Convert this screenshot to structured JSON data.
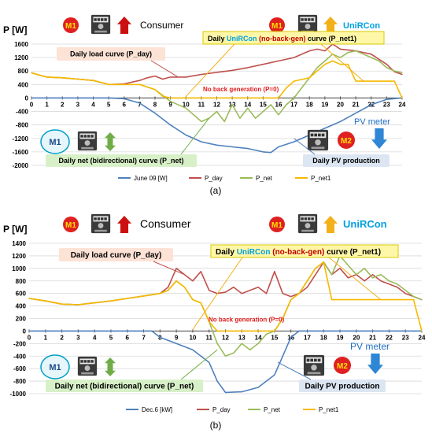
{
  "figure": {
    "panel_a_caption": "(a)",
    "panel_b_caption": "(b)"
  },
  "icons": {
    "m1_badge": "M1",
    "m2_badge": "M2",
    "meter_icon": "electricity-meter-icon",
    "consumer_arrow": "red-up-arrow-icon",
    "unircon_arrow": "orange-up-arrow-icon",
    "net_arrow": "green-double-arrow-icon",
    "pv_arrow": "blue-down-arrow-icon"
  },
  "colors": {
    "series_pv": "#4f81bd",
    "series_day": "#c0504d",
    "series_net": "#9bbb59",
    "series_net1": "#f7b900",
    "m1_badge": "#e02020",
    "m1_ring": "#00a0c6",
    "unircon_text": "#00a0e0",
    "nobackgen_text": "#c00000",
    "load_box": "#fde2d6",
    "net_box": "#d8f0c8",
    "pv_box": "#dce6f2",
    "unircon_box": "#fff7a8"
  },
  "chart_data": [
    {
      "type": "line",
      "ylabel": "P [W]",
      "ylim": [
        -2000,
        1600
      ],
      "yticks": [
        "1600",
        "1200",
        "800",
        "400",
        "0",
        "-400",
        "-800",
        "-1200",
        "-1600",
        "-2000"
      ],
      "xlim": [
        0,
        24
      ],
      "xticks": [
        "0",
        "1",
        "2",
        "3",
        "4",
        "5",
        "6",
        "7",
        "8",
        "9",
        "10",
        "11",
        "12",
        "13",
        "14",
        "15",
        "16",
        "17",
        "18",
        "19",
        "20",
        "21",
        "22",
        "23",
        "24"
      ],
      "grid": true,
      "legend_position": "bottom",
      "annotations": {
        "consumer": "Consumer",
        "unircon_daily": "Daily",
        "unircon_word": "UniRCon",
        "unircon_noback": "(no-back-gen)",
        "unircon_curve": "curve (P_net1)",
        "unircon_title": "UniRCon",
        "load_curve": "Daily load curve (P_day)",
        "no_back": "No back generation (P=0)",
        "net_curve": "Daily net (bidirectional) curve (P_net)",
        "pv_production": "Daily PV production",
        "pv_meter": "PV meter"
      },
      "series": [
        {
          "name": "June 09 [W]",
          "points": [
            [
              0,
              0
            ],
            [
              5,
              0
            ],
            [
              6,
              -20
            ],
            [
              7,
              -150
            ],
            [
              8,
              -450
            ],
            [
              9,
              -800
            ],
            [
              10,
              -1100
            ],
            [
              11,
              -1300
            ],
            [
              12,
              -1400
            ],
            [
              13,
              -1450
            ],
            [
              14,
              -1500
            ],
            [
              15,
              -1600
            ],
            [
              15.5,
              -1620
            ],
            [
              16,
              -1450
            ],
            [
              17,
              -1300
            ],
            [
              18,
              -1100
            ],
            [
              19,
              -900
            ],
            [
              20,
              -700
            ],
            [
              21,
              -450
            ],
            [
              22,
              -200
            ],
            [
              23,
              -40
            ],
            [
              24,
              0
            ]
          ]
        },
        {
          "name": "P_day",
          "points": [
            [
              0,
              750
            ],
            [
              0.5,
              680
            ],
            [
              1,
              620
            ],
            [
              2,
              600
            ],
            [
              3,
              560
            ],
            [
              4,
              520
            ],
            [
              5,
              400
            ],
            [
              6,
              420
            ],
            [
              7,
              520
            ],
            [
              7.5,
              600
            ],
            [
              8,
              650
            ],
            [
              8.5,
              560
            ],
            [
              9,
              620
            ],
            [
              10,
              620
            ],
            [
              11,
              700
            ],
            [
              12,
              760
            ],
            [
              13,
              820
            ],
            [
              14,
              900
            ],
            [
              15,
              1000
            ],
            [
              16,
              1100
            ],
            [
              17,
              1200
            ],
            [
              18,
              1400
            ],
            [
              18.5,
              1450
            ],
            [
              19,
              1400
            ],
            [
              19.5,
              1600
            ],
            [
              20,
              1450
            ],
            [
              21,
              1400
            ],
            [
              22,
              1300
            ],
            [
              23,
              1000
            ],
            [
              23.5,
              780
            ],
            [
              24,
              700
            ]
          ]
        },
        {
          "name": "P_net",
          "points": [
            [
              0,
              750
            ],
            [
              0.5,
              680
            ],
            [
              1,
              620
            ],
            [
              2,
              600
            ],
            [
              3,
              560
            ],
            [
              4,
              520
            ],
            [
              5,
              400
            ],
            [
              6,
              400
            ],
            [
              7,
              400
            ],
            [
              8,
              250
            ],
            [
              9,
              -100
            ],
            [
              10,
              -300
            ],
            [
              10.5,
              -500
            ],
            [
              11,
              -700
            ],
            [
              11.5,
              -600
            ],
            [
              12,
              -400
            ],
            [
              12.5,
              -700
            ],
            [
              13,
              -200
            ],
            [
              13.5,
              -600
            ],
            [
              14,
              -300
            ],
            [
              14.5,
              -600
            ],
            [
              15,
              -400
            ],
            [
              15.5,
              -200
            ],
            [
              16,
              -500
            ],
            [
              16.5,
              -200
            ],
            [
              17,
              0
            ],
            [
              17.5,
              300
            ],
            [
              18,
              600
            ],
            [
              18.5,
              900
            ],
            [
              19,
              1100
            ],
            [
              19.5,
              1300
            ],
            [
              20,
              1200
            ],
            [
              20.5,
              1350
            ],
            [
              21,
              1400
            ],
            [
              21.5,
              1300
            ],
            [
              22,
              1200
            ],
            [
              22.5,
              1100
            ],
            [
              23,
              900
            ],
            [
              23.5,
              800
            ],
            [
              24,
              750
            ]
          ]
        },
        {
          "name": "P_net1",
          "points": [
            [
              0,
              750
            ],
            [
              0.5,
              680
            ],
            [
              1,
              620
            ],
            [
              2,
              600
            ],
            [
              3,
              560
            ],
            [
              4,
              520
            ],
            [
              5,
              400
            ],
            [
              6,
              400
            ],
            [
              7,
              400
            ],
            [
              8,
              250
            ],
            [
              8.5,
              50
            ],
            [
              9,
              0
            ],
            [
              16,
              0
            ],
            [
              16.5,
              300
            ],
            [
              17,
              500
            ],
            [
              17.5,
              550
            ],
            [
              18,
              600
            ],
            [
              18.5,
              800
            ],
            [
              19,
              1000
            ],
            [
              19.5,
              1100
            ],
            [
              20,
              1000
            ],
            [
              20.5,
              1000
            ],
            [
              21,
              500
            ],
            [
              23.5,
              500
            ],
            [
              24,
              0
            ]
          ]
        }
      ]
    },
    {
      "type": "line",
      "ylabel": "P [W]",
      "ylim": [
        -1000,
        1400
      ],
      "yticks": [
        "1400",
        "1200",
        "1000",
        "800",
        "600",
        "400",
        "200",
        "0",
        "-200",
        "-400",
        "-600",
        "-800",
        "-1000"
      ],
      "xlim": [
        0,
        24
      ],
      "xticks": [
        "0",
        "1",
        "2",
        "3",
        "4",
        "5",
        "6",
        "7",
        "8",
        "9",
        "10",
        "11",
        "12",
        "13",
        "14",
        "15",
        "16",
        "17",
        "18",
        "19",
        "20",
        "21",
        "22",
        "23",
        "24"
      ],
      "grid": true,
      "legend_position": "bottom",
      "annotations": {
        "consumer": "Consumer",
        "unircon_daily": "Daily",
        "unircon_word": "UniRCon",
        "unircon_noback": "(no-back-gen)",
        "unircon_curve": "curve (P_net1)",
        "unircon_title": "UniRCon",
        "load_curve": "Daily load curve (P_day)",
        "no_back": "No back generation (P=0)",
        "net_curve": "Daily net (bidirectional) curve (P_net)",
        "pv_production": "Daily PV production",
        "pv_meter": "PV meter"
      },
      "series": [
        {
          "name": "Dec.6 [kW]",
          "points": [
            [
              0,
              0
            ],
            [
              7.5,
              0
            ],
            [
              8,
              -100
            ],
            [
              9,
              -200
            ],
            [
              10,
              -300
            ],
            [
              11,
              -500
            ],
            [
              11.5,
              -800
            ],
            [
              12,
              -980
            ],
            [
              13,
              -970
            ],
            [
              14,
              -900
            ],
            [
              15,
              -700
            ],
            [
              15.5,
              -400
            ],
            [
              16,
              -100
            ],
            [
              16.5,
              0
            ],
            [
              24,
              0
            ]
          ]
        },
        {
          "name": "P_day",
          "points": [
            [
              0,
              520
            ],
            [
              1,
              480
            ],
            [
              2,
              430
            ],
            [
              3,
              420
            ],
            [
              4,
              450
            ],
            [
              5,
              480
            ],
            [
              6,
              520
            ],
            [
              7,
              560
            ],
            [
              8,
              600
            ],
            [
              8.5,
              700
            ],
            [
              9,
              1000
            ],
            [
              9.5,
              900
            ],
            [
              10,
              800
            ],
            [
              10.5,
              950
            ],
            [
              11,
              650
            ],
            [
              11.5,
              600
            ],
            [
              12,
              620
            ],
            [
              12.5,
              700
            ],
            [
              13,
              600
            ],
            [
              13.5,
              650
            ],
            [
              14,
              700
            ],
            [
              14.5,
              600
            ],
            [
              15,
              950
            ],
            [
              15.5,
              600
            ],
            [
              16,
              550
            ],
            [
              16.5,
              600
            ],
            [
              17,
              700
            ],
            [
              17.5,
              900
            ],
            [
              18,
              1100
            ],
            [
              18.5,
              900
            ],
            [
              19,
              1000
            ],
            [
              19.5,
              850
            ],
            [
              20,
              900
            ],
            [
              20.5,
              800
            ],
            [
              21,
              900
            ],
            [
              21.5,
              800
            ],
            [
              22,
              750
            ],
            [
              22.5,
              700
            ],
            [
              23,
              600
            ],
            [
              23.5,
              550
            ],
            [
              24,
              500
            ]
          ]
        },
        {
          "name": "P_net",
          "points": [
            [
              0,
              520
            ],
            [
              1,
              480
            ],
            [
              2,
              430
            ],
            [
              3,
              420
            ],
            [
              4,
              450
            ],
            [
              5,
              480
            ],
            [
              6,
              520
            ],
            [
              7,
              560
            ],
            [
              8,
              600
            ],
            [
              8.5,
              650
            ],
            [
              9,
              800
            ],
            [
              9.5,
              700
            ],
            [
              10,
              500
            ],
            [
              10.5,
              450
            ],
            [
              11,
              150
            ],
            [
              11.5,
              -200
            ],
            [
              12,
              -400
            ],
            [
              12.5,
              -350
            ],
            [
              13,
              -200
            ],
            [
              13.5,
              -300
            ],
            [
              14,
              -200
            ],
            [
              14.5,
              -50
            ],
            [
              15,
              0
            ],
            [
              15.5,
              200
            ],
            [
              16,
              500
            ],
            [
              16.5,
              600
            ],
            [
              17,
              800
            ],
            [
              17.5,
              1000
            ],
            [
              18,
              1100
            ],
            [
              18.5,
              900
            ],
            [
              19,
              1200
            ],
            [
              19.5,
              1050
            ],
            [
              20,
              900
            ],
            [
              20.5,
              1000
            ],
            [
              21,
              850
            ],
            [
              21.5,
              900
            ],
            [
              22,
              800
            ],
            [
              22.5,
              750
            ],
            [
              23,
              650
            ],
            [
              23.5,
              550
            ],
            [
              24,
              500
            ]
          ]
        },
        {
          "name": "P_net1",
          "points": [
            [
              0,
              520
            ],
            [
              1,
              480
            ],
            [
              2,
              430
            ],
            [
              3,
              420
            ],
            [
              4,
              450
            ],
            [
              5,
              480
            ],
            [
              6,
              520
            ],
            [
              7,
              560
            ],
            [
              8,
              600
            ],
            [
              8.5,
              650
            ],
            [
              9,
              800
            ],
            [
              9.5,
              700
            ],
            [
              10,
              500
            ],
            [
              10.5,
              450
            ],
            [
              11,
              150
            ],
            [
              11.5,
              0
            ],
            [
              15,
              0
            ],
            [
              15.5,
              200
            ],
            [
              16,
              500
            ],
            [
              16.5,
              600
            ],
            [
              17,
              800
            ],
            [
              17.5,
              1000
            ],
            [
              18,
              1100
            ],
            [
              18.5,
              500
            ],
            [
              23.5,
              500
            ],
            [
              24,
              0
            ]
          ]
        }
      ]
    }
  ]
}
